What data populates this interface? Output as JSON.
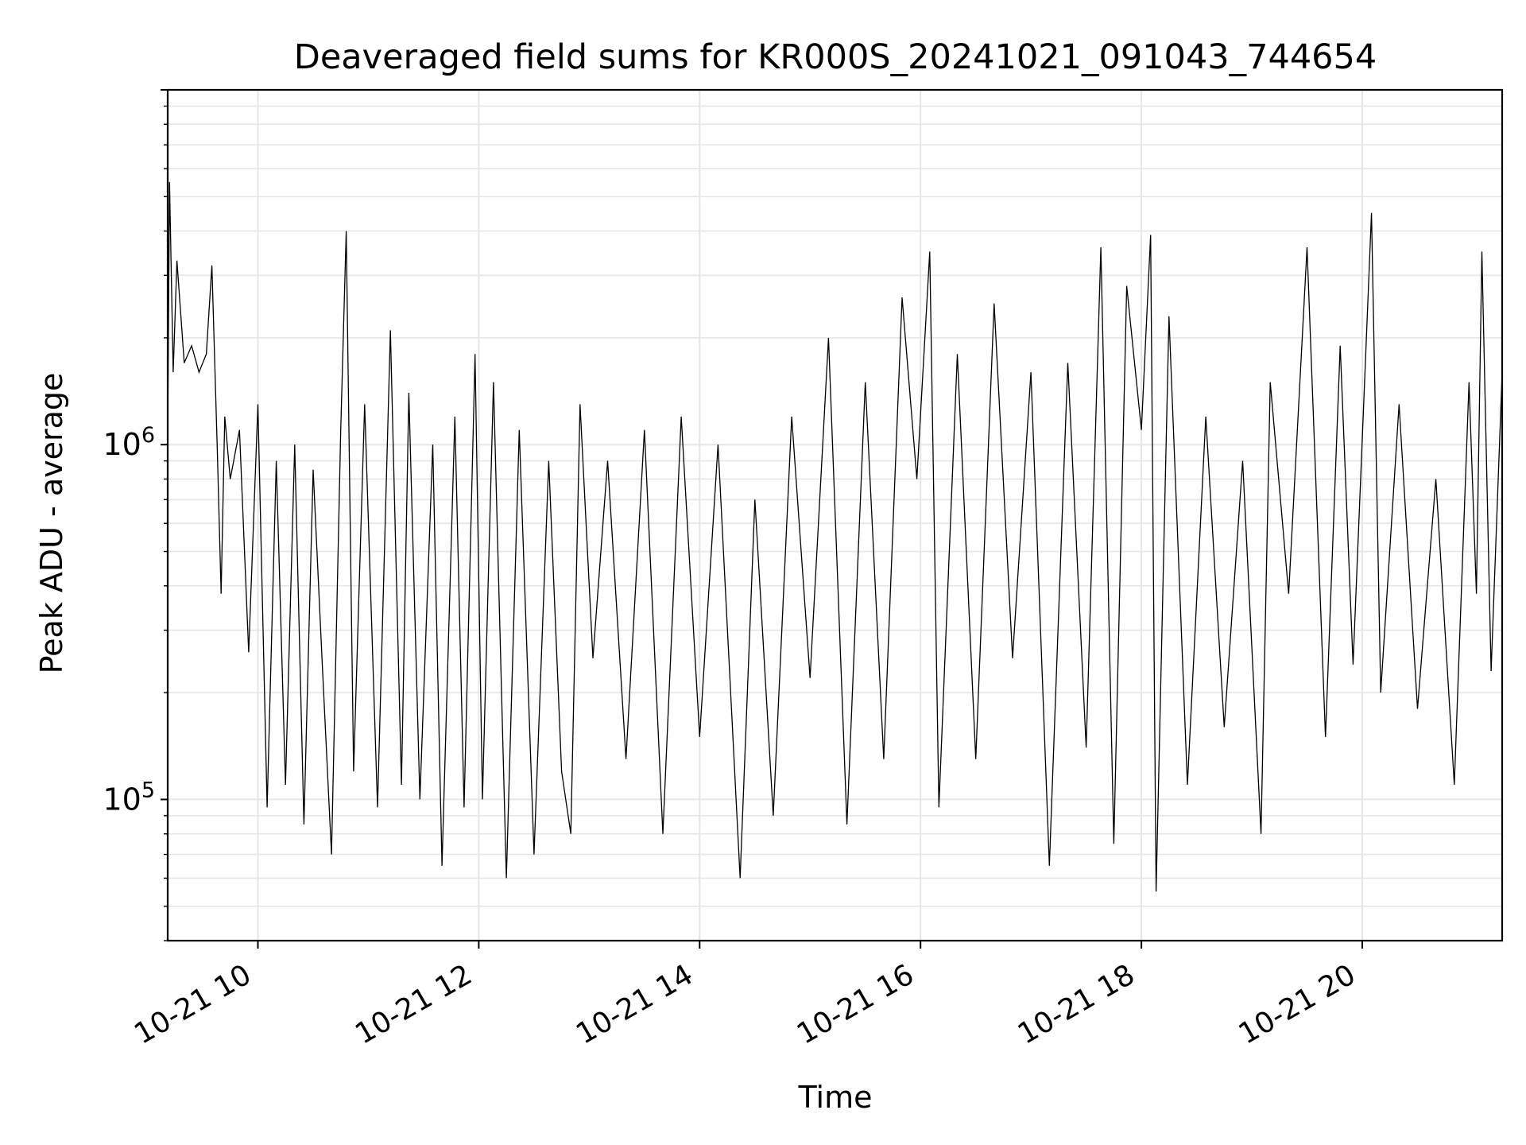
{
  "chart_data": {
    "type": "line",
    "title": "Deaveraged field sums for KR000S_20241021_091043_744654",
    "xlabel": "Time",
    "ylabel": "Peak ADU - average",
    "yscale": "log",
    "ylim": [
      40000,
      10000000
    ],
    "xlim": [
      "2024-10-21 09:11",
      "2024-10-21 21:16"
    ],
    "grid": true,
    "x_ticks": [
      {
        "value": "2024-10-21 10:00",
        "label": "10-21 10"
      },
      {
        "value": "2024-10-21 12:00",
        "label": "10-21 12"
      },
      {
        "value": "2024-10-21 14:00",
        "label": "10-21 14"
      },
      {
        "value": "2024-10-21 16:00",
        "label": "10-21 16"
      },
      {
        "value": "2024-10-21 18:00",
        "label": "10-21 18"
      },
      {
        "value": "2024-10-21 20:00",
        "label": "10-21 20"
      }
    ],
    "y_ticks": [
      {
        "value": 100000,
        "mantissa": "10",
        "exponent": "5"
      },
      {
        "value": 1000000,
        "mantissa": "10",
        "exponent": "6"
      }
    ],
    "series": [
      {
        "color": "#000000",
        "x": [
          "2024-10-21 09:11",
          "2024-10-21 09:12",
          "2024-10-21 09:14",
          "2024-10-21 09:16",
          "2024-10-21 09:20",
          "2024-10-21 09:24",
          "2024-10-21 09:28",
          "2024-10-21 09:32",
          "2024-10-21 09:35",
          "2024-10-21 09:38",
          "2024-10-21 09:40",
          "2024-10-21 09:42",
          "2024-10-21 09:45",
          "2024-10-21 09:50",
          "2024-10-21 09:55",
          "2024-10-21 10:00",
          "2024-10-21 10:05",
          "2024-10-21 10:10",
          "2024-10-21 10:15",
          "2024-10-21 10:20",
          "2024-10-21 10:25",
          "2024-10-21 10:30",
          "2024-10-21 10:35",
          "2024-10-21 10:40",
          "2024-10-21 10:45",
          "2024-10-21 10:48",
          "2024-10-21 10:52",
          "2024-10-21 10:58",
          "2024-10-21 11:05",
          "2024-10-21 11:12",
          "2024-10-21 11:18",
          "2024-10-21 11:22",
          "2024-10-21 11:28",
          "2024-10-21 11:35",
          "2024-10-21 11:40",
          "2024-10-21 11:47",
          "2024-10-21 11:52",
          "2024-10-21 11:58",
          "2024-10-21 12:02",
          "2024-10-21 12:08",
          "2024-10-21 12:15",
          "2024-10-21 12:22",
          "2024-10-21 12:30",
          "2024-10-21 12:38",
          "2024-10-21 12:45",
          "2024-10-21 12:50",
          "2024-10-21 12:55",
          "2024-10-21 13:02",
          "2024-10-21 13:10",
          "2024-10-21 13:20",
          "2024-10-21 13:30",
          "2024-10-21 13:40",
          "2024-10-21 13:50",
          "2024-10-21 14:00",
          "2024-10-21 14:10",
          "2024-10-21 14:22",
          "2024-10-21 14:30",
          "2024-10-21 14:40",
          "2024-10-21 14:50",
          "2024-10-21 15:00",
          "2024-10-21 15:10",
          "2024-10-21 15:20",
          "2024-10-21 15:30",
          "2024-10-21 15:40",
          "2024-10-21 15:50",
          "2024-10-21 15:58",
          "2024-10-21 16:05",
          "2024-10-21 16:10",
          "2024-10-21 16:20",
          "2024-10-21 16:30",
          "2024-10-21 16:40",
          "2024-10-21 16:50",
          "2024-10-21 17:00",
          "2024-10-21 17:10",
          "2024-10-21 17:20",
          "2024-10-21 17:30",
          "2024-10-21 17:38",
          "2024-10-21 17:45",
          "2024-10-21 17:52",
          "2024-10-21 18:00",
          "2024-10-21 18:05",
          "2024-10-21 18:08",
          "2024-10-21 18:15",
          "2024-10-21 18:25",
          "2024-10-21 18:35",
          "2024-10-21 18:45",
          "2024-10-21 18:55",
          "2024-10-21 19:05",
          "2024-10-21 19:10",
          "2024-10-21 19:20",
          "2024-10-21 19:30",
          "2024-10-21 19:40",
          "2024-10-21 19:48",
          "2024-10-21 19:55",
          "2024-10-21 20:05",
          "2024-10-21 20:10",
          "2024-10-21 20:20",
          "2024-10-21 20:30",
          "2024-10-21 20:40",
          "2024-10-21 20:50",
          "2024-10-21 20:58",
          "2024-10-21 21:02",
          "2024-10-21 21:05",
          "2024-10-21 21:10",
          "2024-10-21 21:16"
        ],
        "y": [
          1050000,
          5500000,
          1600000,
          3300000,
          1700000,
          1900000,
          1600000,
          1800000,
          3200000,
          950000,
          380000,
          1200000,
          800000,
          1100000,
          260000,
          1300000,
          95000,
          900000,
          110000,
          1000000,
          85000,
          850000,
          240000,
          70000,
          1100000,
          4000000,
          120000,
          1300000,
          95000,
          2100000,
          110000,
          1400000,
          100000,
          1000000,
          65000,
          1200000,
          95000,
          1800000,
          100000,
          1500000,
          60000,
          1100000,
          70000,
          900000,
          120000,
          80000,
          1300000,
          250000,
          900000,
          130000,
          1100000,
          80000,
          1200000,
          150000,
          1000000,
          60000,
          700000,
          90000,
          1200000,
          220000,
          2000000,
          85000,
          1500000,
          130000,
          2600000,
          800000,
          3500000,
          95000,
          1800000,
          130000,
          2500000,
          250000,
          1600000,
          65000,
          1700000,
          140000,
          3600000,
          75000,
          2800000,
          1100000,
          3900000,
          55000,
          2300000,
          110000,
          1200000,
          160000,
          900000,
          80000,
          1500000,
          380000,
          3600000,
          150000,
          1900000,
          240000,
          4500000,
          200000,
          1300000,
          180000,
          800000,
          110000,
          1500000,
          380000,
          3500000,
          230000,
          1600000
        ]
      }
    ]
  }
}
